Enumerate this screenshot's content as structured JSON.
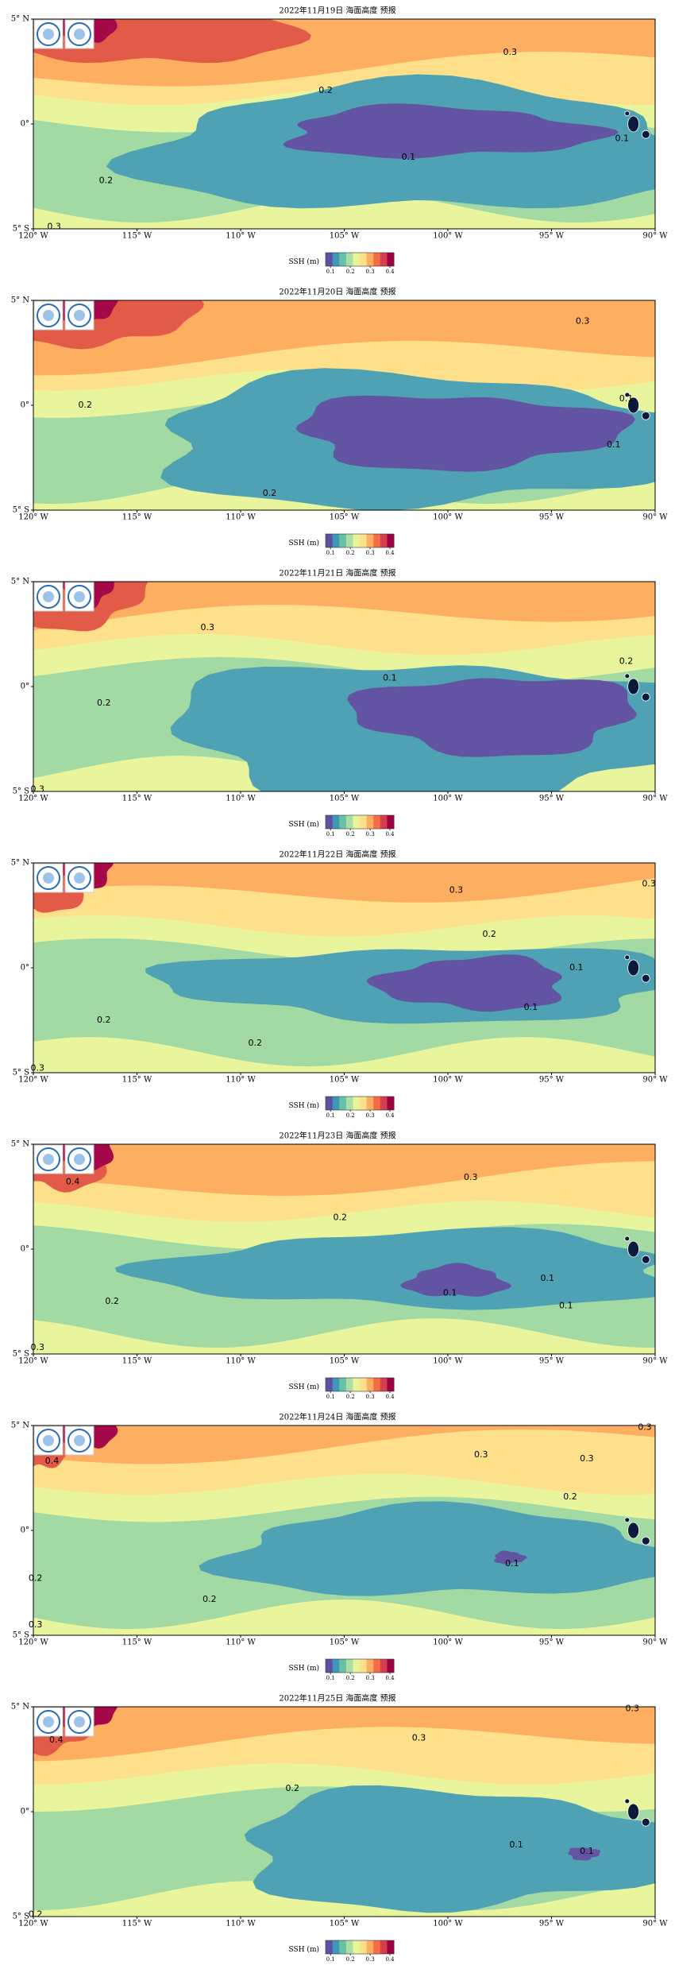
{
  "maps": [
    {
      "title": "2022年11月19日 海面高度 预报",
      "contour_labels": [
        {
          "level": 0.3,
          "lon": -97.0,
          "lat": 3.4
        },
        {
          "level": 0.2,
          "lon": -105.9,
          "lat": 1.6
        },
        {
          "level": 0.1,
          "lon": -101.9,
          "lat": -1.6
        },
        {
          "level": 0.2,
          "lon": -116.5,
          "lat": -2.7
        },
        {
          "level": 0.3,
          "lon": -119,
          "lat": -4.9
        },
        {
          "level": 0.1,
          "lon": -91.6,
          "lat": -0.7
        }
      ]
    },
    {
      "title": "2022年11月20日 海面高度 预报",
      "contour_labels": [
        {
          "level": 0.3,
          "lon": -93.5,
          "lat": 4.0
        },
        {
          "level": 0.2,
          "lon": -117.5,
          "lat": 0.0
        },
        {
          "level": 0.1,
          "lon": -91.4,
          "lat": 0.3
        },
        {
          "level": 0.1,
          "lon": -92.0,
          "lat": -1.9
        },
        {
          "level": 0.2,
          "lon": -108.6,
          "lat": -4.2
        }
      ]
    },
    {
      "title": "2022年11月21日 海面高度 预报",
      "contour_labels": [
        {
          "level": 0.3,
          "lon": -111.6,
          "lat": 2.8
        },
        {
          "level": 0.2,
          "lon": -91.4,
          "lat": 1.2
        },
        {
          "level": 0.1,
          "lon": -102.8,
          "lat": 0.4
        },
        {
          "level": 0.2,
          "lon": -116.6,
          "lat": -0.8
        },
        {
          "level": 0.3,
          "lon": -119.8,
          "lat": -4.9
        }
      ]
    },
    {
      "title": "2022年11月22日 海面高度 预报",
      "contour_labels": [
        {
          "level": 0.3,
          "lon": -99.6,
          "lat": 3.7
        },
        {
          "level": 0.3,
          "lon": -90.3,
          "lat": 4.0
        },
        {
          "level": 0.2,
          "lon": -98.0,
          "lat": 1.6
        },
        {
          "level": 0.1,
          "lon": -93.8,
          "lat": 0.0
        },
        {
          "level": 0.1,
          "lon": -96.0,
          "lat": -1.9
        },
        {
          "level": 0.2,
          "lon": -116.6,
          "lat": -2.5
        },
        {
          "level": 0.2,
          "lon": -109.3,
          "lat": -3.6
        },
        {
          "level": 0.3,
          "lon": -119.8,
          "lat": -4.8
        }
      ]
    },
    {
      "title": "2022年11月23日 海面高度 预报",
      "contour_labels": [
        {
          "level": 0.4,
          "lon": -118.1,
          "lat": 3.2
        },
        {
          "level": 0.3,
          "lon": -98.9,
          "lat": 3.4
        },
        {
          "level": 0.2,
          "lon": -105.2,
          "lat": 1.5
        },
        {
          "level": 0.1,
          "lon": -95.2,
          "lat": -1.4
        },
        {
          "level": 0.1,
          "lon": -99.9,
          "lat": -2.1
        },
        {
          "level": 0.1,
          "lon": -94.3,
          "lat": -2.7
        },
        {
          "level": 0.2,
          "lon": -116.2,
          "lat": -2.5
        },
        {
          "level": 0.3,
          "lon": -119.8,
          "lat": -4.7
        }
      ]
    },
    {
      "title": "2022年11月24日 海面高度 预报",
      "contour_labels": [
        {
          "level": 0.3,
          "lon": -90.5,
          "lat": 4.9
        },
        {
          "level": 0.4,
          "lon": -119.1,
          "lat": 3.3
        },
        {
          "level": 0.3,
          "lon": -98.4,
          "lat": 3.6
        },
        {
          "level": 0.3,
          "lon": -93.3,
          "lat": 3.4
        },
        {
          "level": 0.2,
          "lon": -94.1,
          "lat": 1.6
        },
        {
          "level": 0.1,
          "lon": -96.9,
          "lat": -1.6
        },
        {
          "level": 0.2,
          "lon": -119.9,
          "lat": -2.3
        },
        {
          "level": 0.2,
          "lon": -111.5,
          "lat": -3.3
        },
        {
          "level": 0.3,
          "lon": -119.9,
          "lat": -4.5
        }
      ]
    },
    {
      "title": "2022年11月25日 海面高度 预报",
      "contour_labels": [
        {
          "level": 0.3,
          "lon": -91.1,
          "lat": 4.9
        },
        {
          "level": 0.4,
          "lon": -118.9,
          "lat": 3.4
        },
        {
          "level": 0.3,
          "lon": -101.4,
          "lat": 3.5
        },
        {
          "level": 0.2,
          "lon": -107.5,
          "lat": 1.1
        },
        {
          "level": 0.1,
          "lon": -96.7,
          "lat": -1.6
        },
        {
          "level": 0.1,
          "lon": -93.3,
          "lat": -1.9
        },
        {
          "level": 0.2,
          "lon": -119.9,
          "lat": -4.9
        }
      ]
    }
  ],
  "lon_range": [
    -120,
    -90
  ],
  "lat_range": [
    -5,
    5
  ],
  "lon_ticks": [
    {
      "value": -120,
      "label": "120° W"
    },
    {
      "value": -115,
      "label": "115° W"
    },
    {
      "value": -110,
      "label": "110° W"
    },
    {
      "value": -105,
      "label": "105° W"
    },
    {
      "value": -100,
      "label": "100° W"
    },
    {
      "value": -95,
      "label": "95° W"
    },
    {
      "value": -90,
      "label": "90° W"
    }
  ],
  "lat_ticks": [
    {
      "value": 5,
      "label": "5° N"
    },
    {
      "value": 0,
      "label": "0°"
    },
    {
      "value": -5,
      "label": "5° S"
    }
  ],
  "colorbar": {
    "label": "SSH (m)",
    "range": [
      0.075,
      0.42
    ],
    "ticks": [
      0.1,
      0.2,
      0.3,
      0.4
    ]
  }
}
